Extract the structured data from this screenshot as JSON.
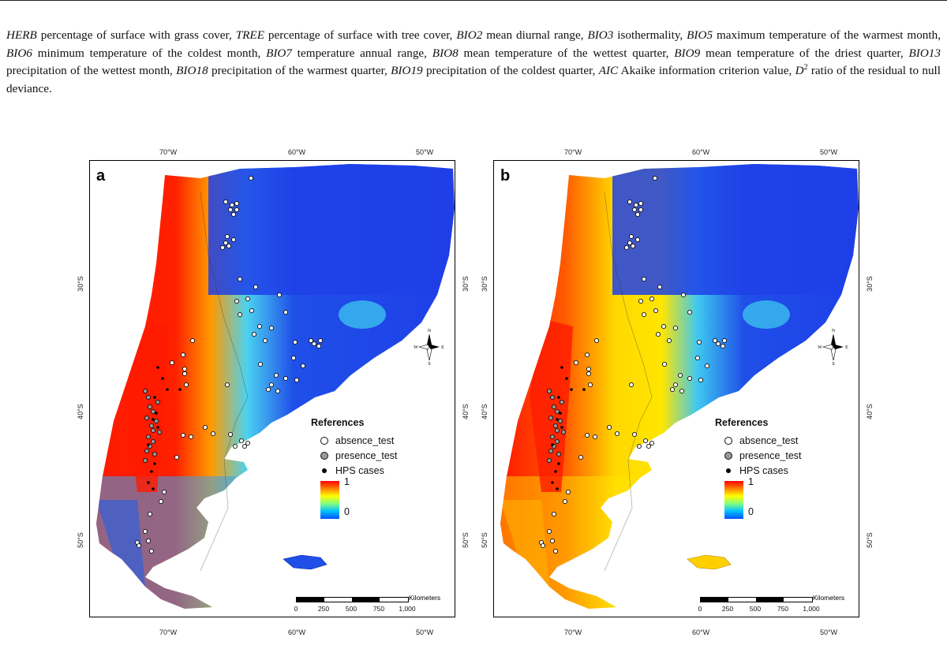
{
  "caption": {
    "segments": [
      {
        "t": "HERB",
        "i": true
      },
      {
        "t": " percentage of surface with grass cover, ",
        "i": false
      },
      {
        "t": "TREE",
        "i": true
      },
      {
        "t": " percentage of surface with tree cover, ",
        "i": false
      },
      {
        "t": "BIO2",
        "i": true
      },
      {
        "t": " mean diurnal range, ",
        "i": false
      },
      {
        "t": "BIO3",
        "i": true
      },
      {
        "t": " isothermality, ",
        "i": false
      },
      {
        "t": "BIO5",
        "i": true
      },
      {
        "t": " maximum temperature of the warmest month, ",
        "i": false
      },
      {
        "t": "BIO6",
        "i": true
      },
      {
        "t": " minimum temperature of the coldest month, ",
        "i": false
      },
      {
        "t": "BIO7",
        "i": true
      },
      {
        "t": " temperature annual range, ",
        "i": false
      },
      {
        "t": "BIO8",
        "i": true
      },
      {
        "t": " mean temperature of the wettest quarter, ",
        "i": false
      },
      {
        "t": "BIO9",
        "i": true
      },
      {
        "t": " mean temperature of the driest quarter, ",
        "i": false
      },
      {
        "t": "BIO13",
        "i": true
      },
      {
        "t": " precipitation of the wettest month, ",
        "i": false
      },
      {
        "t": "BIO18",
        "i": true
      },
      {
        "t": " precipitation of the warmest quarter, ",
        "i": false
      },
      {
        "t": "BIO19",
        "i": true
      },
      {
        "t": " precipitation of the coldest quarter, ",
        "i": false
      },
      {
        "t": "AIC",
        "i": true
      },
      {
        "t": " Akaike information criterion value, ",
        "i": false
      },
      {
        "t": "D",
        "i": true,
        "sup": "2"
      },
      {
        "t": " ratio of the residual to null deviance.",
        "i": false
      }
    ]
  },
  "coords": {
    "top": [
      "70°W",
      "60°W",
      "50°W"
    ],
    "bottom": [
      "70°W",
      "60°W",
      "50°W"
    ],
    "left": [
      "30°S",
      "40°S",
      "50°S"
    ],
    "right": [
      "30°S",
      "40°S",
      "50°S"
    ]
  },
  "panels": [
    {
      "label": "a",
      "variant": "sharp"
    },
    {
      "label": "b",
      "variant": "smooth"
    }
  ],
  "legend": {
    "title": "References",
    "items": [
      {
        "label": "absence_test",
        "marker": "hollow-circle"
      },
      {
        "label": "presence_test",
        "marker": "grey-circle"
      },
      {
        "label": "HPS cases",
        "marker": "black-dot"
      }
    ],
    "ramp_max": "1",
    "ramp_min": "0",
    "ramp_colors": [
      "#ff0000",
      "#ff8000",
      "#ffff00",
      "#80ff80",
      "#00c0ff",
      "#0050ff"
    ]
  },
  "scalebar": {
    "ticks": [
      "0",
      "250",
      "500",
      "750",
      "1,000"
    ],
    "unit": "Kilometers"
  },
  "compass": {
    "n": "N",
    "s": "S",
    "e": "E",
    "w": "W"
  },
  "colors": {
    "ocean": "#ffffff",
    "low": "#1f3fe8",
    "mid": "#3fd0f0",
    "high": "#ff1a00",
    "yellow": "#ffe600",
    "border": "#000000"
  }
}
